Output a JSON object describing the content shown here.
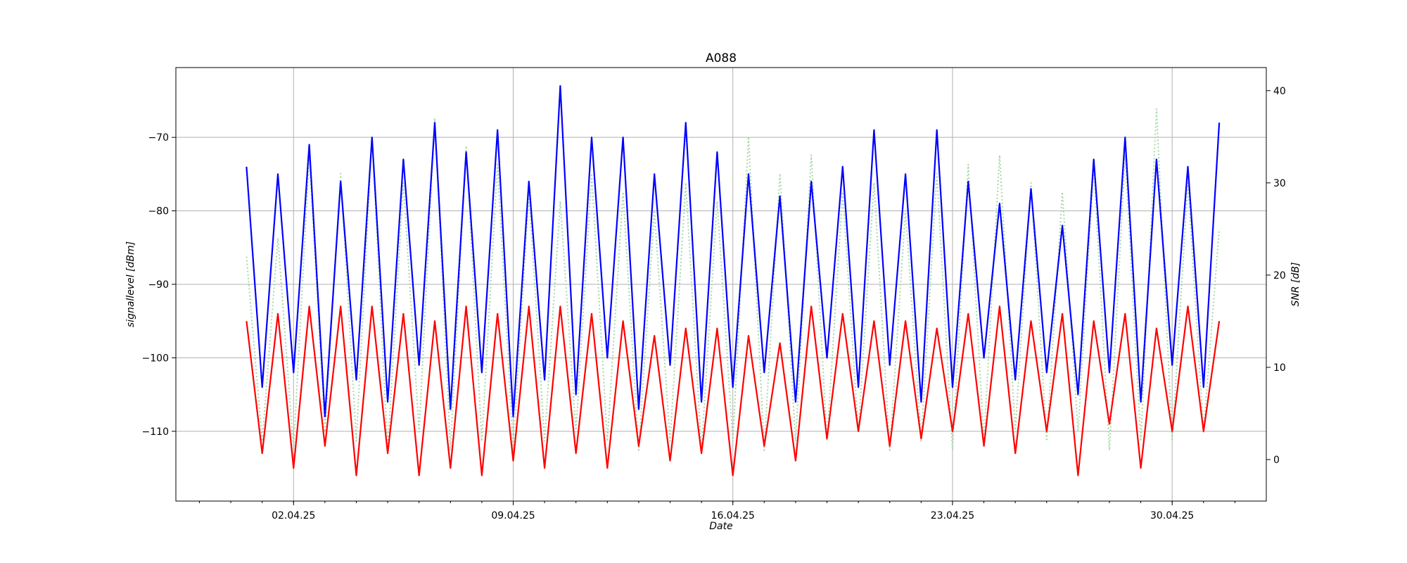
{
  "chart_data": {
    "type": "line",
    "title": "A088",
    "xlabel": "Date",
    "ylabel_left": "signallevel [dBm]",
    "ylabel_right": "SNR [dB]",
    "grid": true,
    "x_range": [
      "2025-03-29T06:00",
      "2025-05-03T00:00"
    ],
    "ylim_left": [
      -119.5,
      -60.5
    ],
    "ylim_right": [
      -4.5,
      42.5
    ],
    "x_ticks": [
      {
        "date": "2025-04-02",
        "label": "02.04.25"
      },
      {
        "date": "2025-04-09",
        "label": "09.04.25"
      },
      {
        "date": "2025-04-16",
        "label": "16.04.25"
      },
      {
        "date": "2025-04-23",
        "label": "23.04.25"
      },
      {
        "date": "2025-04-30",
        "label": "30.04.25"
      }
    ],
    "y_ticks_left": [
      -70,
      -80,
      -90,
      -100,
      -110
    ],
    "y_ticks_right": [
      0,
      10,
      20,
      30,
      40
    ],
    "series": [
      {
        "axis": "left",
        "color": "#0000ff",
        "style": "solid",
        "x": [
          "2025-03-31T12:00",
          "2025-04-01T00:00",
          "2025-04-01T12:00",
          "2025-04-02T00:00",
          "2025-04-02T12:00",
          "2025-04-03T00:00",
          "2025-04-03T12:00",
          "2025-04-04T00:00",
          "2025-04-04T12:00",
          "2025-04-05T00:00",
          "2025-04-05T12:00",
          "2025-04-06T00:00",
          "2025-04-06T12:00",
          "2025-04-07T00:00",
          "2025-04-07T12:00",
          "2025-04-08T00:00",
          "2025-04-08T12:00",
          "2025-04-09T00:00",
          "2025-04-09T12:00",
          "2025-04-10T00:00",
          "2025-04-10T12:00",
          "2025-04-11T00:00",
          "2025-04-11T12:00",
          "2025-04-12T00:00",
          "2025-04-12T12:00",
          "2025-04-13T00:00",
          "2025-04-13T12:00",
          "2025-04-14T00:00",
          "2025-04-14T12:00",
          "2025-04-15T00:00",
          "2025-04-15T12:00",
          "2025-04-16T00:00",
          "2025-04-16T12:00",
          "2025-04-17T00:00",
          "2025-04-17T12:00",
          "2025-04-18T00:00",
          "2025-04-18T12:00",
          "2025-04-19T00:00",
          "2025-04-19T12:00",
          "2025-04-20T00:00",
          "2025-04-20T12:00",
          "2025-04-21T00:00",
          "2025-04-21T12:00",
          "2025-04-22T00:00",
          "2025-04-22T12:00",
          "2025-04-23T00:00",
          "2025-04-23T12:00",
          "2025-04-24T00:00",
          "2025-04-24T12:00",
          "2025-04-25T00:00",
          "2025-04-25T12:00",
          "2025-04-26T00:00",
          "2025-04-26T12:00",
          "2025-04-27T00:00",
          "2025-04-27T12:00",
          "2025-04-28T00:00",
          "2025-04-28T12:00",
          "2025-04-29T00:00",
          "2025-04-29T12:00",
          "2025-04-30T00:00",
          "2025-04-30T12:00",
          "2025-05-01T00:00",
          "2025-05-01T12:00"
        ],
        "values": [
          -74,
          -104,
          -75,
          -102,
          -71,
          -108,
          -76,
          -103,
          -70,
          -106,
          -73,
          -101,
          -68,
          -107,
          -72,
          -102,
          -69,
          -108,
          -76,
          -103,
          -63,
          -105,
          -70,
          -100,
          -70,
          -107,
          -75,
          -101,
          -68,
          -106,
          -72,
          -104,
          -75,
          -102,
          -78,
          -106,
          -76,
          -100,
          -74,
          -104,
          -69,
          -101,
          -75,
          -106,
          -69,
          -104,
          -76,
          -100,
          -79,
          -103,
          -77,
          -102,
          -82,
          -105,
          -73,
          -102,
          -70,
          -106,
          -73,
          -101,
          -74,
          -104,
          -68
        ]
      },
      {
        "axis": "left",
        "color": "#ff0000",
        "style": "solid",
        "x": [
          "2025-03-31T12:00",
          "2025-04-01T00:00",
          "2025-04-01T12:00",
          "2025-04-02T00:00",
          "2025-04-02T12:00",
          "2025-04-03T00:00",
          "2025-04-03T12:00",
          "2025-04-04T00:00",
          "2025-04-04T12:00",
          "2025-04-05T00:00",
          "2025-04-05T12:00",
          "2025-04-06T00:00",
          "2025-04-06T12:00",
          "2025-04-07T00:00",
          "2025-04-07T12:00",
          "2025-04-08T00:00",
          "2025-04-08T12:00",
          "2025-04-09T00:00",
          "2025-04-09T12:00",
          "2025-04-10T00:00",
          "2025-04-10T12:00",
          "2025-04-11T00:00",
          "2025-04-11T12:00",
          "2025-04-12T00:00",
          "2025-04-12T12:00",
          "2025-04-13T00:00",
          "2025-04-13T12:00",
          "2025-04-14T00:00",
          "2025-04-14T12:00",
          "2025-04-15T00:00",
          "2025-04-15T12:00",
          "2025-04-16T00:00",
          "2025-04-16T12:00",
          "2025-04-17T00:00",
          "2025-04-17T12:00",
          "2025-04-18T00:00",
          "2025-04-18T12:00",
          "2025-04-19T00:00",
          "2025-04-19T12:00",
          "2025-04-20T00:00",
          "2025-04-20T12:00",
          "2025-04-21T00:00",
          "2025-04-21T12:00",
          "2025-04-22T00:00",
          "2025-04-22T12:00",
          "2025-04-23T00:00",
          "2025-04-23T12:00",
          "2025-04-24T00:00",
          "2025-04-24T12:00",
          "2025-04-25T00:00",
          "2025-04-25T12:00",
          "2025-04-26T00:00",
          "2025-04-26T12:00",
          "2025-04-27T00:00",
          "2025-04-27T12:00",
          "2025-04-28T00:00",
          "2025-04-28T12:00",
          "2025-04-29T00:00",
          "2025-04-29T12:00",
          "2025-04-30T00:00",
          "2025-04-30T12:00",
          "2025-05-01T00:00",
          "2025-05-01T12:00"
        ],
        "values": [
          -95,
          -113,
          -94,
          -115,
          -93,
          -112,
          -93,
          -116,
          -93,
          -113,
          -94,
          -116,
          -95,
          -115,
          -93,
          -116,
          -94,
          -114,
          -93,
          -115,
          -93,
          -113,
          -94,
          -115,
          -95,
          -112,
          -97,
          -114,
          -96,
          -113,
          -96,
          -116,
          -97,
          -112,
          -98,
          -114,
          -93,
          -111,
          -94,
          -110,
          -95,
          -112,
          -95,
          -111,
          -96,
          -110,
          -94,
          -112,
          -93,
          -113,
          -95,
          -110,
          -94,
          -116,
          -95,
          -109,
          -94,
          -115,
          -96,
          -110,
          -93,
          -110,
          -95
        ]
      },
      {
        "axis": "right",
        "color": "#a8d8a8",
        "style": "dotted",
        "x": [
          "2025-03-31T12:00",
          "2025-04-01T00:00",
          "2025-04-01T12:00",
          "2025-04-02T00:00",
          "2025-04-02T12:00",
          "2025-04-03T00:00",
          "2025-04-03T12:00",
          "2025-04-04T00:00",
          "2025-04-04T12:00",
          "2025-04-05T00:00",
          "2025-04-05T12:00",
          "2025-04-06T00:00",
          "2025-04-06T12:00",
          "2025-04-07T00:00",
          "2025-04-07T12:00",
          "2025-04-08T00:00",
          "2025-04-08T12:00",
          "2025-04-09T00:00",
          "2025-04-09T12:00",
          "2025-04-10T00:00",
          "2025-04-10T12:00",
          "2025-04-11T00:00",
          "2025-04-11T12:00",
          "2025-04-12T00:00",
          "2025-04-12T12:00",
          "2025-04-13T00:00",
          "2025-04-13T12:00",
          "2025-04-14T00:00",
          "2025-04-14T12:00",
          "2025-04-15T00:00",
          "2025-04-15T12:00",
          "2025-04-16T00:00",
          "2025-04-16T12:00",
          "2025-04-17T00:00",
          "2025-04-17T12:00",
          "2025-04-18T00:00",
          "2025-04-18T12:00",
          "2025-04-19T00:00",
          "2025-04-19T12:00",
          "2025-04-20T00:00",
          "2025-04-20T12:00",
          "2025-04-21T00:00",
          "2025-04-21T12:00",
          "2025-04-22T00:00",
          "2025-04-22T12:00",
          "2025-04-23T00:00",
          "2025-04-23T12:00",
          "2025-04-24T00:00",
          "2025-04-24T12:00",
          "2025-04-25T00:00",
          "2025-04-25T12:00",
          "2025-04-26T00:00",
          "2025-04-26T12:00",
          "2025-04-27T00:00",
          "2025-04-27T12:00",
          "2025-04-28T00:00",
          "2025-04-28T12:00",
          "2025-04-29T00:00",
          "2025-04-29T12:00",
          "2025-04-30T00:00",
          "2025-04-30T12:00",
          "2025-05-01T00:00",
          "2025-05-01T12:00"
        ],
        "values": [
          22,
          2,
          24,
          1,
          33,
          3,
          31,
          2,
          35,
          1,
          30,
          3,
          37,
          1,
          34,
          2,
          32,
          1,
          29,
          2,
          28,
          3,
          31,
          2,
          29,
          1,
          27,
          2,
          30,
          1,
          28,
          2,
          35,
          1,
          31,
          2,
          33,
          2,
          29,
          3,
          30,
          1,
          27,
          2,
          31,
          1,
          32,
          2,
          33,
          3,
          30,
          2,
          29,
          3,
          32,
          1,
          33,
          2,
          38,
          2,
          30,
          3,
          25
        ]
      }
    ]
  }
}
